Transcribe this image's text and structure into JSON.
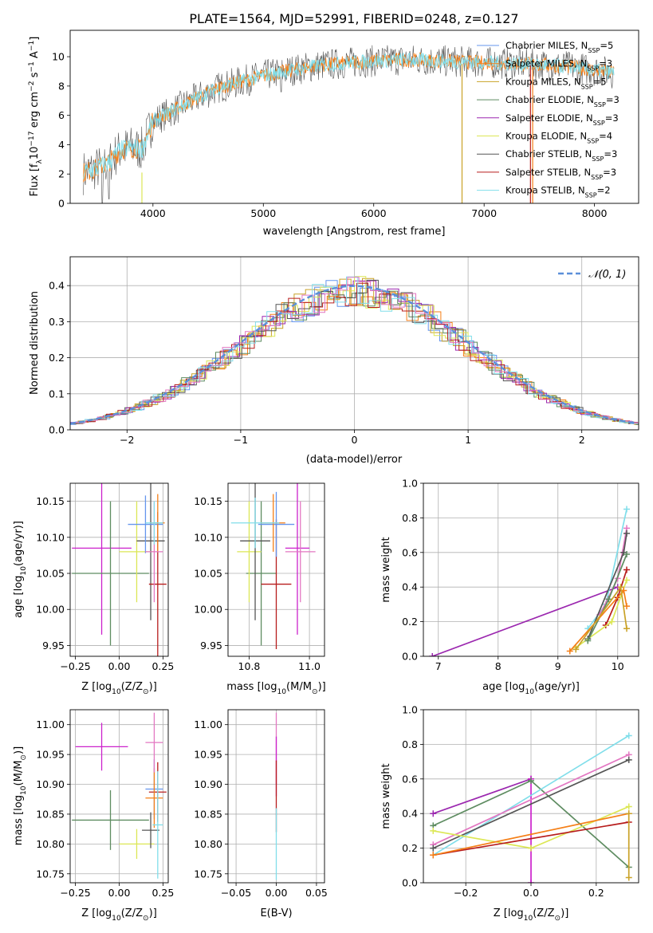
{
  "figure": {
    "title": "PLATE=1564, MJD=52991, FIBERID=0248, z=0.127"
  },
  "colors": {
    "Chabrier MILES": "#6495ed",
    "Salpeter MILES": "#f57f17",
    "Kroupa MILES": "#c9a227",
    "Chabrier ELODIE": "#5e8c61",
    "Salpeter ELODIE": "#9b27af",
    "Kroupa ELODIE": "#dce755",
    "Chabrier STELIB": "#555555",
    "Salpeter STELIB": "#b71c1c",
    "Kroupa STELIB": "#80deea",
    "extra_pink": "#e377c2",
    "extra_magenta": "#cc22cc",
    "reference": "#5b8fd9"
  },
  "chart_data": [
    {
      "id": "spectrum",
      "type": "line",
      "xlabel": "wavelength [Angstrom, rest frame]",
      "ylabel_main": "Flux [f",
      "ylabel_sub": "λ",
      "ylabel_rest": "10",
      "ylabel_exp1": "−17",
      "ylabel_mid": " erg cm",
      "ylabel_exp2": "−2",
      "ylabel_mid2": " s",
      "ylabel_exp3": "−1",
      "ylabel_end": " A",
      "ylabel_exp4": "−1",
      "ylabel_close": "]",
      "xlim": [
        3250,
        8400
      ],
      "ylim": [
        0,
        11.8
      ],
      "xticks": [
        4000,
        5000,
        6000,
        7000,
        8000
      ],
      "yticks": [
        0,
        2,
        4,
        6,
        8,
        10
      ],
      "grid": false,
      "legend_position": "upper-right",
      "continuum": [
        [
          3370,
          2.1
        ],
        [
          3500,
          2.4
        ],
        [
          3600,
          2.8
        ],
        [
          3700,
          3.6
        ],
        [
          3800,
          3.8
        ],
        [
          3900,
          3.7
        ],
        [
          4000,
          5.6
        ],
        [
          4200,
          6.4
        ],
        [
          4400,
          7.2
        ],
        [
          4600,
          7.9
        ],
        [
          4800,
          8.3
        ],
        [
          5000,
          8.7
        ],
        [
          5200,
          9.0
        ],
        [
          5500,
          9.4
        ],
        [
          5800,
          9.6
        ],
        [
          6000,
          9.7
        ],
        [
          6300,
          9.8
        ],
        [
          6600,
          9.7
        ],
        [
          7000,
          9.6
        ],
        [
          7400,
          9.5
        ],
        [
          7800,
          9.3
        ],
        [
          8180,
          8.9
        ]
      ],
      "series": [
        {
          "name": "Chabrier MILES",
          "nssp": "5"
        },
        {
          "name": "Salpeter MILES",
          "nssp": "3"
        },
        {
          "name": "Kroupa MILES",
          "nssp": "5"
        },
        {
          "name": "Chabrier ELODIE",
          "nssp": "3"
        },
        {
          "name": "Salpeter ELODIE",
          "nssp": "3"
        },
        {
          "name": "Kroupa ELODIE",
          "nssp": "4"
        },
        {
          "name": "Chabrier STELIB",
          "nssp": "3"
        },
        {
          "name": "Salpeter STELIB",
          "nssp": "3"
        },
        {
          "name": "Kroupa STELIB",
          "nssp": "2"
        }
      ],
      "legend_suffix_n": "N",
      "legend_suffix_sub": "SSP"
    },
    {
      "id": "residuals",
      "type": "line",
      "xlabel": "(data-model)/error",
      "ylabel": "Normed distribution",
      "xlim": [
        -2.5,
        2.5
      ],
      "ylim": [
        0,
        0.48
      ],
      "xticks": [
        -2,
        -1,
        0,
        1,
        2
      ],
      "xtick_labels": [
        "−2",
        "−1",
        "0",
        "1",
        "2"
      ],
      "yticks": [
        0.0,
        0.1,
        0.2,
        0.3,
        0.4
      ],
      "ytick_labels": [
        "0.0",
        "0.1",
        "0.2",
        "0.3",
        "0.4"
      ],
      "grid": true,
      "legend": "𝒩(0, 1)",
      "legend_position": "top-right",
      "reference": "N(0,1) gaussian"
    },
    {
      "id": "age_vs_Z",
      "type": "scatter",
      "xlabel_main": "Z [log",
      "xlabel_sub": "10",
      "xlabel_rest": "(Z/Z",
      "xlabel_sub2": "⊙",
      "xlabel_end": ")]",
      "ylabel": "age  [log10(age/yr)]",
      "xlim": [
        -0.28,
        0.28
      ],
      "ylim": [
        9.935,
        10.175
      ],
      "xticks": [
        -0.25,
        0.0,
        0.25
      ],
      "xtick_labels": [
        "−0.25",
        "0.00",
        "0.25"
      ],
      "yticks": [
        9.95,
        10.0,
        10.05,
        10.1,
        10.15
      ],
      "ytick_labels": [
        "9.95",
        "10.00",
        "10.05",
        "10.10",
        "10.15"
      ],
      "grid": true,
      "points": [
        {
          "x": -0.1,
          "y": 10.085,
          "xerr": 0.17,
          "yerr": 0.12,
          "color": "#cc22cc"
        },
        {
          "x": -0.05,
          "y": 10.05,
          "xerr": 0.22,
          "yerr": 0.1,
          "color": "#5e8c61"
        },
        {
          "x": 0.1,
          "y": 10.08,
          "xerr": 0.1,
          "yerr": 0.07,
          "color": "#dce755"
        },
        {
          "x": 0.18,
          "y": 10.095,
          "xerr": 0.08,
          "yerr": 0.11,
          "color": "#555555"
        },
        {
          "x": 0.22,
          "y": 10.035,
          "xerr": 0.05,
          "yerr": 0.1,
          "color": "#b71c1c"
        },
        {
          "x": 0.15,
          "y": 10.118,
          "xerr": 0.1,
          "yerr": 0.04,
          "color": "#6495ed"
        },
        {
          "x": 0.22,
          "y": 10.12,
          "xerr": 0.04,
          "yerr": 0.04,
          "color": "#f57f17"
        },
        {
          "x": 0.2,
          "y": 10.08,
          "xerr": 0.05,
          "yerr": 0.07,
          "color": "#e377c2"
        },
        {
          "x": 0.2,
          "y": 10.12,
          "xerr": 0.05,
          "yerr": 0.03,
          "color": "#80deea"
        }
      ]
    },
    {
      "id": "age_vs_mass",
      "type": "scatter",
      "xlabel_main": "mass [log",
      "xlabel_sub": "10",
      "xlabel_rest": "(M/M",
      "xlabel_sub2": "⊙",
      "xlabel_end": ")]",
      "xlim": [
        10.73,
        11.05
      ],
      "ylim": [
        9.935,
        10.175
      ],
      "xticks": [
        10.8,
        11.0
      ],
      "xtick_labels": [
        "10.8",
        "11.0"
      ],
      "yticks": [
        9.95,
        10.0,
        10.05,
        10.1,
        10.15
      ],
      "ytick_labels": [
        "9.95",
        "10.00",
        "10.05",
        "10.10",
        "10.15"
      ],
      "grid": true,
      "points": [
        {
          "x": 10.96,
          "y": 10.085,
          "xerr": 0.04,
          "yerr": 0.12,
          "color": "#cc22cc"
        },
        {
          "x": 10.84,
          "y": 10.05,
          "xerr": 0.05,
          "yerr": 0.1,
          "color": "#5e8c61"
        },
        {
          "x": 10.8,
          "y": 10.08,
          "xerr": 0.04,
          "yerr": 0.07,
          "color": "#dce755"
        },
        {
          "x": 10.82,
          "y": 10.095,
          "xerr": 0.05,
          "yerr": 0.11,
          "color": "#555555"
        },
        {
          "x": 10.89,
          "y": 10.035,
          "xerr": 0.05,
          "yerr": 0.09,
          "color": "#b71c1c"
        },
        {
          "x": 10.89,
          "y": 10.118,
          "xerr": 0.06,
          "yerr": 0.045,
          "color": "#6495ed"
        },
        {
          "x": 10.88,
          "y": 10.12,
          "xerr": 0.04,
          "yerr": 0.04,
          "color": "#f57f17"
        },
        {
          "x": 10.97,
          "y": 10.08,
          "xerr": 0.05,
          "yerr": 0.07,
          "color": "#e377c2"
        },
        {
          "x": 10.82,
          "y": 10.12,
          "xerr": 0.08,
          "yerr": 0.035,
          "color": "#80deea"
        }
      ]
    },
    {
      "id": "massweight_vs_age",
      "type": "line",
      "xlabel_main": "age  [log",
      "xlabel_sub": "10",
      "xlabel_rest": "(age/yr)]",
      "ylabel": "mass weight",
      "xlim": [
        6.75,
        10.35
      ],
      "ylim": [
        0,
        1
      ],
      "xticks": [
        7,
        8,
        9,
        10
      ],
      "xtick_labels": [
        "7",
        "8",
        "9",
        "10"
      ],
      "yticks": [
        0.0,
        0.2,
        0.4,
        0.6,
        0.8,
        1.0
      ],
      "ytick_labels": [
        "0.0",
        "0.2",
        "0.4",
        "0.6",
        "0.8",
        "1.0"
      ],
      "grid": true,
      "series": [
        {
          "color": "#9b27af",
          "x": [
            6.9,
            10.0
          ],
          "y": [
            0.0,
            0.4
          ]
        },
        {
          "color": "#80deea",
          "x": [
            9.5,
            9.8,
            10.15
          ],
          "y": [
            0.16,
            0.3,
            0.85
          ]
        },
        {
          "color": "#e377c2",
          "x": [
            9.7,
            10.0,
            10.15
          ],
          "y": [
            0.24,
            0.45,
            0.74
          ]
        },
        {
          "color": "#555555",
          "x": [
            9.5,
            10.1,
            10.15
          ],
          "y": [
            0.1,
            0.6,
            0.71
          ]
        },
        {
          "color": "#b71c1c",
          "x": [
            9.8,
            10.0,
            10.15
          ],
          "y": [
            0.18,
            0.34,
            0.5
          ]
        },
        {
          "color": "#dce755",
          "x": [
            9.3,
            9.9,
            10.15
          ],
          "y": [
            0.05,
            0.2,
            0.44
          ]
        },
        {
          "color": "#5e8c61",
          "x": [
            9.5,
            9.85,
            10.15
          ],
          "y": [
            0.09,
            0.33,
            0.59
          ]
        },
        {
          "color": "#f57f17",
          "x": [
            9.2,
            10.1,
            10.15
          ],
          "y": [
            0.03,
            0.38,
            0.29
          ]
        },
        {
          "color": "#c9a227",
          "x": [
            9.3,
            10.05,
            10.15
          ],
          "y": [
            0.04,
            0.4,
            0.16
          ]
        }
      ]
    },
    {
      "id": "mass_vs_Z",
      "type": "scatter",
      "xlabel_main": "Z [log",
      "xlabel_sub": "10",
      "xlabel_rest": "(Z/Z",
      "xlabel_sub2": "⊙",
      "xlabel_end": ")]",
      "ylabel": "mass [log10(M/M⊙)]",
      "xlim": [
        -0.28,
        0.28
      ],
      "ylim": [
        10.735,
        11.025
      ],
      "xticks": [
        -0.25,
        0.0,
        0.25
      ],
      "xtick_labels": [
        "−0.25",
        "0.00",
        "0.25"
      ],
      "yticks": [
        10.75,
        10.8,
        10.85,
        10.9,
        10.95,
        11.0
      ],
      "ytick_labels": [
        "10.75",
        "10.80",
        "10.85",
        "10.90",
        "10.95",
        "11.00"
      ],
      "grid": true,
      "points": [
        {
          "x": -0.1,
          "y": 10.963,
          "xerr": 0.15,
          "yerr": 0.04,
          "color": "#cc22cc"
        },
        {
          "x": -0.05,
          "y": 10.84,
          "xerr": 0.22,
          "yerr": 0.05,
          "color": "#5e8c61"
        },
        {
          "x": 0.1,
          "y": 10.8,
          "xerr": 0.1,
          "yerr": 0.025,
          "color": "#dce755"
        },
        {
          "x": 0.18,
          "y": 10.823,
          "xerr": 0.05,
          "yerr": 0.03,
          "color": "#555555"
        },
        {
          "x": 0.22,
          "y": 10.887,
          "xerr": 0.05,
          "yerr": 0.05,
          "color": "#b71c1c"
        },
        {
          "x": 0.2,
          "y": 10.892,
          "xerr": 0.05,
          "yerr": 0.05,
          "color": "#6495ed"
        },
        {
          "x": 0.2,
          "y": 10.877,
          "xerr": 0.05,
          "yerr": 0.05,
          "color": "#f57f17"
        },
        {
          "x": 0.2,
          "y": 10.97,
          "xerr": 0.05,
          "yerr": 0.05,
          "color": "#e377c2"
        },
        {
          "x": 0.22,
          "y": 10.832,
          "xerr": 0.03,
          "yerr": 0.09,
          "color": "#80deea"
        }
      ]
    },
    {
      "id": "mass_vs_ebv",
      "type": "scatter",
      "xlabel": "E(B-V)",
      "xlim": [
        -0.06,
        0.06
      ],
      "ylim": [
        10.735,
        11.025
      ],
      "xticks": [
        -0.05,
        0.0,
        0.05
      ],
      "xtick_labels": [
        "−0.05",
        "0.00",
        "0.05"
      ],
      "yticks": [
        10.75,
        10.8,
        10.85,
        10.9,
        10.95,
        11.0
      ],
      "ytick_labels": [
        "10.75",
        "10.80",
        "10.85",
        "10.90",
        "10.95",
        "11.00"
      ],
      "grid": true,
      "points": [
        {
          "x": 0.0,
          "y": 10.96,
          "xerr": 0.0,
          "yerr": 0.06,
          "color": "#e377c2"
        },
        {
          "x": 0.0,
          "y": 10.93,
          "xerr": 0.0,
          "yerr": 0.05,
          "color": "#cc22cc"
        },
        {
          "x": 0.0,
          "y": 10.88,
          "xerr": 0.0,
          "yerr": 0.06,
          "color": "#b71c1c"
        },
        {
          "x": 0.0,
          "y": 10.8,
          "xerr": 0.0,
          "yerr": 0.06,
          "color": "#80deea"
        }
      ]
    },
    {
      "id": "massweight_vs_Z",
      "type": "line",
      "xlabel_main": "Z [log",
      "xlabel_sub": "10",
      "xlabel_rest": "(Z/Z",
      "xlabel_sub2": "⊙",
      "xlabel_end": ")]",
      "ylabel": "mass weight",
      "xlim": [
        -0.33,
        0.33
      ],
      "ylim": [
        0,
        1
      ],
      "xticks": [
        -0.2,
        0.0,
        0.2
      ],
      "xtick_labels": [
        "−0.2",
        "0.0",
        "0.2"
      ],
      "yticks": [
        0.0,
        0.2,
        0.4,
        0.6,
        0.8,
        1.0
      ],
      "ytick_labels": [
        "0.0",
        "0.2",
        "0.4",
        "0.6",
        "0.8",
        "1.0"
      ],
      "grid": true,
      "series": [
        {
          "color": "#9b27af",
          "x": [
            -0.3,
            0.0
          ],
          "y": [
            0.4,
            0.6
          ]
        },
        {
          "color": "#cc22cc",
          "x": [
            0.0,
            0.0
          ],
          "y": [
            0.0,
            0.6
          ]
        },
        {
          "color": "#5e8c61",
          "x": [
            -0.3,
            0.0,
            0.3
          ],
          "y": [
            0.33,
            0.59,
            0.09
          ]
        },
        {
          "color": "#80deea",
          "x": [
            -0.3,
            0.3
          ],
          "y": [
            0.16,
            0.85
          ]
        },
        {
          "color": "#e377c2",
          "x": [
            -0.3,
            0.3
          ],
          "y": [
            0.22,
            0.74
          ]
        },
        {
          "color": "#555555",
          "x": [
            -0.3,
            0.3
          ],
          "y": [
            0.2,
            0.71
          ]
        },
        {
          "color": "#dce755",
          "x": [
            -0.3,
            0.0,
            0.3
          ],
          "y": [
            0.3,
            0.2,
            0.44
          ]
        },
        {
          "color": "#b71c1c",
          "x": [
            -0.3,
            0.3
          ],
          "y": [
            0.16,
            0.35
          ]
        },
        {
          "color": "#f57f17",
          "x": [
            -0.3,
            0.3
          ],
          "y": [
            0.16,
            0.4
          ]
        },
        {
          "color": "#c9a227",
          "x": [
            0.3,
            0.3
          ],
          "y": [
            0.03,
            0.4
          ]
        }
      ]
    }
  ]
}
